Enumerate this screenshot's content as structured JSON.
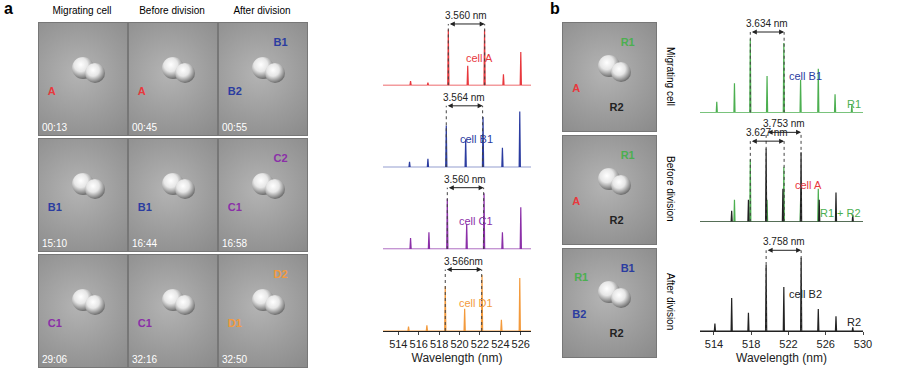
{
  "panel_a": {
    "label": "a",
    "column_titles": [
      "Migrating cell",
      "Before division",
      "After division"
    ],
    "images": [
      [
        {
          "time": "00:13",
          "labels": [
            {
              "text": "A",
              "color": "#e8383d"
            }
          ]
        },
        {
          "time": "00:45",
          "labels": [
            {
              "text": "A",
              "color": "#e8383d"
            }
          ]
        },
        {
          "time": "00:55",
          "labels": [
            {
              "text": "B2",
              "color": "#2b3ca0"
            },
            {
              "text": "B1",
              "color": "#2b3ca0"
            }
          ]
        }
      ],
      [
        {
          "time": "15:10",
          "labels": [
            {
              "text": "B1",
              "color": "#2b3ca0"
            }
          ]
        },
        {
          "time": "16:44",
          "labels": [
            {
              "text": "B1",
              "color": "#2b3ca0"
            }
          ]
        },
        {
          "time": "16:58",
          "labels": [
            {
              "text": "C1",
              "color": "#8b2fa8"
            },
            {
              "text": "C2",
              "color": "#8b2fa8"
            }
          ]
        }
      ],
      [
        {
          "time": "29:06",
          "labels": [
            {
              "text": "C1",
              "color": "#8b2fa8"
            }
          ]
        },
        {
          "time": "32:16",
          "labels": [
            {
              "text": "C1",
              "color": "#8b2fa8"
            }
          ]
        },
        {
          "time": "32:50",
          "labels": [
            {
              "text": "D1",
              "color": "#f39a3c"
            },
            {
              "text": "D2",
              "color": "#f39a3c"
            }
          ]
        }
      ]
    ]
  },
  "panel_b": {
    "label": "b",
    "row_titles": [
      "Migrating cell",
      "Before division",
      "After division"
    ],
    "images": [
      {
        "labels": [
          {
            "text": "A",
            "color": "#e8383d"
          },
          {
            "text": "R1",
            "color": "#4caf50"
          },
          {
            "text": "R2",
            "color": "#222222"
          }
        ]
      },
      {
        "labels": [
          {
            "text": "A",
            "color": "#e8383d"
          },
          {
            "text": "R1",
            "color": "#4caf50"
          },
          {
            "text": "R2",
            "color": "#222222"
          }
        ]
      },
      {
        "labels": [
          {
            "text": "B2",
            "color": "#2b3ca0"
          },
          {
            "text": "B1",
            "color": "#2b3ca0"
          },
          {
            "text": "R2",
            "color": "#222222"
          },
          {
            "text": "R1",
            "color": "#4caf50"
          }
        ]
      }
    ]
  },
  "chart_data": [
    {
      "type": "spectrum",
      "xlabel": "Wavelength (nm)",
      "xlim": [
        512.5,
        527
      ],
      "xticks": [
        514,
        516,
        518,
        520,
        522,
        524,
        526
      ],
      "ylim": [
        0,
        1.35
      ],
      "tick_labels": "x",
      "rows": [
        {
          "labels": [
            {
              "text": "cell A",
              "color": "#e8383d"
            }
          ],
          "series": [
            {
              "color": "#e8383d",
              "x": [
                515.2,
                516.9,
                518.9,
                520.8,
                522.45,
                524.3,
                526.0
              ],
              "values": [
                0.08,
                0.05,
                1.0,
                0.35,
                1.0,
                0.2,
                0.6
              ]
            }
          ],
          "fsr": [
            {
              "label": "3.560 nm",
              "from": 518.9,
              "to": 522.46
            }
          ]
        },
        {
          "labels": [
            {
              "text": "cell B1",
              "color": "#2b3ca0"
            }
          ],
          "series": [
            {
              "color": "#2b3ca0",
              "x": [
                515.1,
                516.9,
                518.7,
                520.6,
                522.3,
                524.2,
                525.9
              ],
              "values": [
                0.1,
                0.15,
                0.75,
                0.5,
                0.9,
                0.35,
                1.0
              ]
            }
          ],
          "fsr": [
            {
              "label": "3.564 nm",
              "from": 518.7,
              "to": 522.26
            }
          ]
        },
        {
          "labels": [
            {
              "text": "cell C1",
              "color": "#8b2fa8"
            }
          ],
          "series": [
            {
              "color": "#8b2fa8",
              "x": [
                515.2,
                517.0,
                518.8,
                520.7,
                522.4,
                524.2,
                526.0
              ],
              "values": [
                0.2,
                0.3,
                0.9,
                0.45,
                1.0,
                0.3,
                0.75
              ]
            }
          ],
          "fsr": [
            {
              "label": "3.560 nm",
              "from": 518.8,
              "to": 522.36
            }
          ]
        },
        {
          "labels": [
            {
              "text": "cell D1",
              "color": "#f39a3c"
            }
          ],
          "series": [
            {
              "color": "#f39a3c",
              "x": [
                515.0,
                516.8,
                518.6,
                520.5,
                522.2,
                524.1,
                525.9
              ],
              "values": [
                0.08,
                0.1,
                0.8,
                0.4,
                1.0,
                0.2,
                0.95
              ]
            }
          ],
          "fsr": [
            {
              "label": "3.566nm",
              "from": 518.6,
              "to": 522.17
            }
          ]
        }
      ]
    },
    {
      "type": "spectrum",
      "xlabel": "Wavelength (nm)",
      "xlim": [
        512.5,
        530
      ],
      "xticks": [
        514,
        518,
        522,
        526,
        530
      ],
      "ylim": [
        0,
        1.4
      ],
      "tick_labels": "x",
      "rows": [
        {
          "labels": [
            {
              "text": "cell B1",
              "color": "#2b3ca0"
            },
            {
              "text": "R1",
              "color": "#4caf50"
            }
          ],
          "series": [
            {
              "color": "#4caf50",
              "x": [
                514.3,
                516.2,
                517.9,
                519.7,
                521.5,
                523.3,
                525.2,
                527.0,
                528.8
              ],
              "values": [
                0.15,
                0.4,
                1.0,
                0.5,
                0.95,
                0.45,
                0.6,
                0.25,
                0.1
              ]
            }
          ],
          "fsr": [
            {
              "label": "3.634 nm",
              "from": 517.9,
              "to": 521.53
            }
          ]
        },
        {
          "labels": [
            {
              "text": "cell A",
              "color": "#e8383d"
            },
            {
              "text": "R1 + R2",
              "color": "#4caf50"
            }
          ],
          "series": [
            {
              "color": "#4caf50",
              "x": [
                516.2,
                517.9,
                519.7,
                521.5,
                523.3,
                525.2
              ],
              "values": [
                0.3,
                0.85,
                0.3,
                0.75,
                0.3,
                0.45
              ]
            },
            {
              "color": "#222222",
              "x": [
                515.9,
                517.7,
                519.6,
                521.4,
                523.35,
                525.3,
                527.1,
                528.9
              ],
              "values": [
                0.15,
                0.3,
                1.0,
                0.45,
                0.95,
                0.3,
                0.4,
                0.1
              ]
            }
          ],
          "fsr": [
            {
              "label": "3.627 nm",
              "from": 517.9,
              "to": 521.53
            },
            {
              "label": "3.753 nm",
              "from": 519.6,
              "to": 523.35
            }
          ]
        },
        {
          "labels": [
            {
              "text": "cell B2",
              "color": "#222222"
            },
            {
              "text": "R2",
              "color": "#222222"
            }
          ],
          "series": [
            {
              "color": "#222222",
              "x": [
                514.1,
                515.9,
                517.7,
                519.6,
                521.5,
                523.36,
                525.2,
                527.1,
                528.9
              ],
              "values": [
                0.1,
                0.45,
                0.25,
                0.9,
                0.6,
                1.0,
                0.3,
                0.2,
                0.05
              ]
            }
          ],
          "fsr": [
            {
              "label": "3.758 nm",
              "from": 519.6,
              "to": 523.36
            }
          ]
        }
      ]
    }
  ]
}
